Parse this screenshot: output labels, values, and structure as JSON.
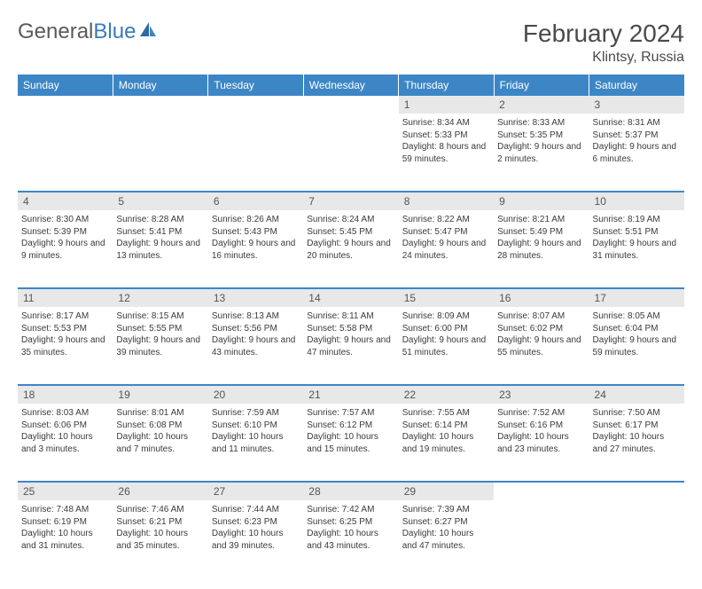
{
  "logo": {
    "text1": "General",
    "text2": "Blue"
  },
  "title": "February 2024",
  "location": "Klintsy, Russia",
  "header_bg": "#3d86c6",
  "daynum_bg": "#e8e8e8",
  "days": [
    "Sunday",
    "Monday",
    "Tuesday",
    "Wednesday",
    "Thursday",
    "Friday",
    "Saturday"
  ],
  "weeks": [
    {
      "nums": [
        "",
        "",
        "",
        "",
        "1",
        "2",
        "3"
      ],
      "cells": [
        {
          "sr": "",
          "ss": "",
          "dl": ""
        },
        {
          "sr": "",
          "ss": "",
          "dl": ""
        },
        {
          "sr": "",
          "ss": "",
          "dl": ""
        },
        {
          "sr": "",
          "ss": "",
          "dl": ""
        },
        {
          "sr": "Sunrise: 8:34 AM",
          "ss": "Sunset: 5:33 PM",
          "dl": "Daylight: 8 hours and 59 minutes."
        },
        {
          "sr": "Sunrise: 8:33 AM",
          "ss": "Sunset: 5:35 PM",
          "dl": "Daylight: 9 hours and 2 minutes."
        },
        {
          "sr": "Sunrise: 8:31 AM",
          "ss": "Sunset: 5:37 PM",
          "dl": "Daylight: 9 hours and 6 minutes."
        }
      ]
    },
    {
      "nums": [
        "4",
        "5",
        "6",
        "7",
        "8",
        "9",
        "10"
      ],
      "cells": [
        {
          "sr": "Sunrise: 8:30 AM",
          "ss": "Sunset: 5:39 PM",
          "dl": "Daylight: 9 hours and 9 minutes."
        },
        {
          "sr": "Sunrise: 8:28 AM",
          "ss": "Sunset: 5:41 PM",
          "dl": "Daylight: 9 hours and 13 minutes."
        },
        {
          "sr": "Sunrise: 8:26 AM",
          "ss": "Sunset: 5:43 PM",
          "dl": "Daylight: 9 hours and 16 minutes."
        },
        {
          "sr": "Sunrise: 8:24 AM",
          "ss": "Sunset: 5:45 PM",
          "dl": "Daylight: 9 hours and 20 minutes."
        },
        {
          "sr": "Sunrise: 8:22 AM",
          "ss": "Sunset: 5:47 PM",
          "dl": "Daylight: 9 hours and 24 minutes."
        },
        {
          "sr": "Sunrise: 8:21 AM",
          "ss": "Sunset: 5:49 PM",
          "dl": "Daylight: 9 hours and 28 minutes."
        },
        {
          "sr": "Sunrise: 8:19 AM",
          "ss": "Sunset: 5:51 PM",
          "dl": "Daylight: 9 hours and 31 minutes."
        }
      ]
    },
    {
      "nums": [
        "11",
        "12",
        "13",
        "14",
        "15",
        "16",
        "17"
      ],
      "cells": [
        {
          "sr": "Sunrise: 8:17 AM",
          "ss": "Sunset: 5:53 PM",
          "dl": "Daylight: 9 hours and 35 minutes."
        },
        {
          "sr": "Sunrise: 8:15 AM",
          "ss": "Sunset: 5:55 PM",
          "dl": "Daylight: 9 hours and 39 minutes."
        },
        {
          "sr": "Sunrise: 8:13 AM",
          "ss": "Sunset: 5:56 PM",
          "dl": "Daylight: 9 hours and 43 minutes."
        },
        {
          "sr": "Sunrise: 8:11 AM",
          "ss": "Sunset: 5:58 PM",
          "dl": "Daylight: 9 hours and 47 minutes."
        },
        {
          "sr": "Sunrise: 8:09 AM",
          "ss": "Sunset: 6:00 PM",
          "dl": "Daylight: 9 hours and 51 minutes."
        },
        {
          "sr": "Sunrise: 8:07 AM",
          "ss": "Sunset: 6:02 PM",
          "dl": "Daylight: 9 hours and 55 minutes."
        },
        {
          "sr": "Sunrise: 8:05 AM",
          "ss": "Sunset: 6:04 PM",
          "dl": "Daylight: 9 hours and 59 minutes."
        }
      ]
    },
    {
      "nums": [
        "18",
        "19",
        "20",
        "21",
        "22",
        "23",
        "24"
      ],
      "cells": [
        {
          "sr": "Sunrise: 8:03 AM",
          "ss": "Sunset: 6:06 PM",
          "dl": "Daylight: 10 hours and 3 minutes."
        },
        {
          "sr": "Sunrise: 8:01 AM",
          "ss": "Sunset: 6:08 PM",
          "dl": "Daylight: 10 hours and 7 minutes."
        },
        {
          "sr": "Sunrise: 7:59 AM",
          "ss": "Sunset: 6:10 PM",
          "dl": "Daylight: 10 hours and 11 minutes."
        },
        {
          "sr": "Sunrise: 7:57 AM",
          "ss": "Sunset: 6:12 PM",
          "dl": "Daylight: 10 hours and 15 minutes."
        },
        {
          "sr": "Sunrise: 7:55 AM",
          "ss": "Sunset: 6:14 PM",
          "dl": "Daylight: 10 hours and 19 minutes."
        },
        {
          "sr": "Sunrise: 7:52 AM",
          "ss": "Sunset: 6:16 PM",
          "dl": "Daylight: 10 hours and 23 minutes."
        },
        {
          "sr": "Sunrise: 7:50 AM",
          "ss": "Sunset: 6:17 PM",
          "dl": "Daylight: 10 hours and 27 minutes."
        }
      ]
    },
    {
      "nums": [
        "25",
        "26",
        "27",
        "28",
        "29",
        "",
        ""
      ],
      "cells": [
        {
          "sr": "Sunrise: 7:48 AM",
          "ss": "Sunset: 6:19 PM",
          "dl": "Daylight: 10 hours and 31 minutes."
        },
        {
          "sr": "Sunrise: 7:46 AM",
          "ss": "Sunset: 6:21 PM",
          "dl": "Daylight: 10 hours and 35 minutes."
        },
        {
          "sr": "Sunrise: 7:44 AM",
          "ss": "Sunset: 6:23 PM",
          "dl": "Daylight: 10 hours and 39 minutes."
        },
        {
          "sr": "Sunrise: 7:42 AM",
          "ss": "Sunset: 6:25 PM",
          "dl": "Daylight: 10 hours and 43 minutes."
        },
        {
          "sr": "Sunrise: 7:39 AM",
          "ss": "Sunset: 6:27 PM",
          "dl": "Daylight: 10 hours and 47 minutes."
        },
        {
          "sr": "",
          "ss": "",
          "dl": ""
        },
        {
          "sr": "",
          "ss": "",
          "dl": ""
        }
      ]
    }
  ]
}
